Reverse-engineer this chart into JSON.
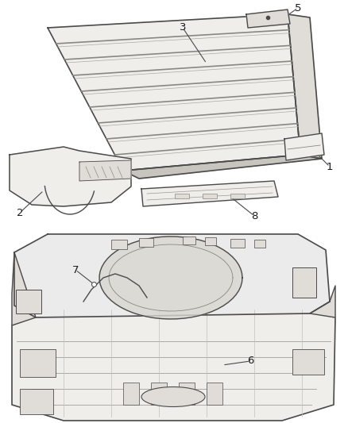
{
  "bg_color": "#ffffff",
  "line_color": "#4a4a4a",
  "fill_light": "#f0eeeb",
  "fill_mid": "#e0ddd8",
  "fill_dark": "#c8c5be",
  "fig_width": 4.38,
  "fig_height": 5.33,
  "dpi": 100
}
